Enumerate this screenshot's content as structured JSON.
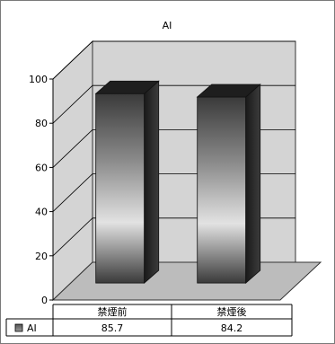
{
  "chart_data": {
    "type": "bar",
    "title": "AI",
    "categories": [
      "禁煙前",
      "禁煙後"
    ],
    "series": [
      {
        "name": "AI",
        "values": [
          85.7,
          84.2
        ]
      }
    ],
    "value_labels": [
      "85.7",
      "84.2"
    ],
    "y_ticks": [
      "0",
      "20",
      "40",
      "60",
      "80",
      "100"
    ],
    "ylim": [
      0,
      100
    ],
    "grid": true,
    "style": "3d-cylinder-bars",
    "legend_position": "bottom-table",
    "colors": {
      "bar_gradient": [
        "#2e2e2e",
        "#dcdcdc",
        "#2e2e2e"
      ],
      "wall": "#d4d4d4",
      "floor": "#bcbcbc",
      "grid": "#000000"
    }
  }
}
